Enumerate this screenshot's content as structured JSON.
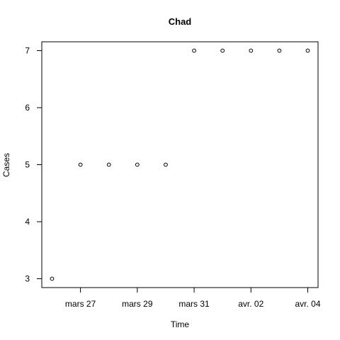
{
  "chart_data": {
    "type": "scatter",
    "title": "Chad",
    "xlabel": "Time",
    "ylabel": "Cases",
    "x": [
      "2020-03-26",
      "2020-03-27",
      "2020-03-28",
      "2020-03-29",
      "2020-03-30",
      "2020-03-31",
      "2020-04-01",
      "2020-04-02",
      "2020-04-03",
      "2020-04-04"
    ],
    "values": [
      3,
      5,
      5,
      5,
      5,
      7,
      7,
      7,
      7,
      7
    ],
    "x_ticks": [
      {
        "date": "2020-03-27",
        "label": "mars 27"
      },
      {
        "date": "2020-03-29",
        "label": "mars 29"
      },
      {
        "date": "2020-03-31",
        "label": "mars 31"
      },
      {
        "date": "2020-04-02",
        "label": "avr. 02"
      },
      {
        "date": "2020-04-04",
        "label": "avr. 04"
      }
    ],
    "y_ticks": [
      3,
      4,
      5,
      6,
      7
    ],
    "ylim": [
      3,
      7
    ],
    "xlim": [
      "2020-03-26",
      "2020-04-04"
    ],
    "grid": false,
    "marker": "open-circle",
    "color": "#000000"
  }
}
